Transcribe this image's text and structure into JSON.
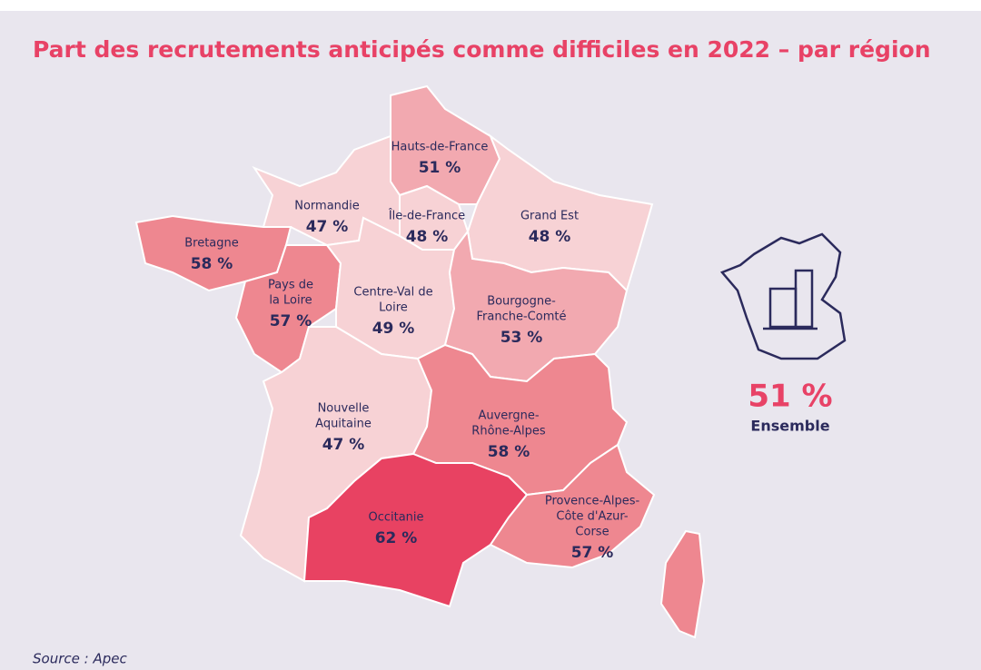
{
  "title": "Part des recrutements anticipés comme difficiles en 2022 – par région",
  "regions": [
    {
      "name_lines": [
        "Hauts-de-France"
      ],
      "label": "51 %",
      "color": "#f2a9b0"
    },
    {
      "name_lines": [
        "Normandie"
      ],
      "label": "47 %",
      "color": "#f7d2d5"
    },
    {
      "name_lines": [
        "Île-de-France"
      ],
      "label": "48 %",
      "color": "#f7d2d5"
    },
    {
      "name_lines": [
        "Grand Est"
      ],
      "label": "48 %",
      "color": "#f7d2d5"
    },
    {
      "name_lines": [
        "Bretagne"
      ],
      "label": "58 %",
      "color": "#ee8790"
    },
    {
      "name_lines": [
        "Pays de",
        "la Loire"
      ],
      "label": "57 %",
      "color": "#ee8790"
    },
    {
      "name_lines": [
        "Centre-Val de",
        "Loire"
      ],
      "label": "49 %",
      "color": "#f7d2d5"
    },
    {
      "name_lines": [
        "Bourgogne-",
        "Franche-Comté"
      ],
      "label": "53 %",
      "color": "#f2a9b0"
    },
    {
      "name_lines": [
        "Nouvelle",
        "Aquitaine"
      ],
      "label": "47 %",
      "color": "#f7d2d5"
    },
    {
      "name_lines": [
        "Auvergne-",
        "Rhône-Alpes"
      ],
      "label": "58 %",
      "color": "#ee8790"
    },
    {
      "name_lines": [
        "Occitanie"
      ],
      "label": "62 %",
      "color": "#e84262"
    },
    {
      "name_lines": [
        "Provence-Alpes-",
        "Côte d'Azur-",
        "Corse"
      ],
      "label": "57 %",
      "color": "#ee8790"
    }
  ],
  "overall": {
    "label": "51 %",
    "caption": "Ensemble"
  },
  "source": "Source : Apec"
}
